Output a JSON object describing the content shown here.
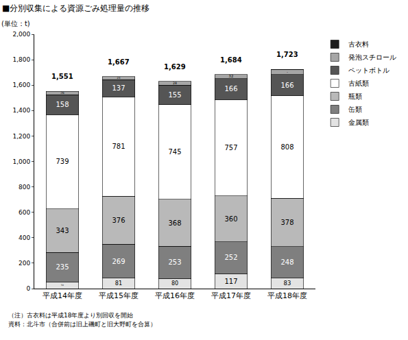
{
  "chart_data": {
    "type": "bar",
    "title": "■分別収集による資源ごみ処理量の推移",
    "y_label": "(単位：t)",
    "stacked": true,
    "data_labels": true,
    "grid": false,
    "legend": "right",
    "categories": [
      "平成14年度",
      "平成15年度",
      "平成16年度",
      "平成17年度",
      "平成18年度"
    ],
    "series": [
      {
        "name": "金属類",
        "color": "#e3e3e3",
        "values": [
          50,
          81,
          80,
          117,
          83
        ]
      },
      {
        "name": "缶類",
        "color": "#7f7f7f",
        "values": [
          235,
          269,
          253,
          252,
          248
        ]
      },
      {
        "name": "瓶類",
        "color": "#b9b9b9",
        "values": [
          343,
          376,
          368,
          360,
          378
        ]
      },
      {
        "name": "古紙類",
        "color": "#ffffff",
        "values": [
          739,
          781,
          745,
          757,
          808
        ]
      },
      {
        "name": "ペットボトル",
        "color": "#555555",
        "values": [
          158,
          137,
          155,
          166,
          166
        ]
      },
      {
        "name": "発泡スチロール",
        "color": "#a6a6a6",
        "values": [
          26,
          23,
          28,
          32,
          38
        ]
      },
      {
        "name": "古衣料",
        "color": "#1e1e1e",
        "values": [
          null,
          null,
          null,
          null,
          2
        ]
      }
    ],
    "totals": [
      1551,
      1667,
      1629,
      1684,
      1723
    ],
    "total_labels": [
      "1,551",
      "1,667",
      "1,629",
      "1,684",
      "1,723"
    ],
    "ylim": [
      0,
      2000
    ],
    "yticks": [
      0,
      200,
      400,
      600,
      800,
      {
        "value": 1000,
        "label": "1,000"
      },
      {
        "value": 1200,
        "label": "1,200"
      },
      {
        "value": 1400,
        "label": "1,400"
      },
      {
        "value": 1600,
        "label": "1,600"
      },
      {
        "value": 1800,
        "label": "1,800"
      },
      {
        "value": 2000,
        "label": "2,000"
      }
    ],
    "notes": [
      "（注）古衣料は平成18年度より別回収を開始",
      "資料：北斗市（合併前は旧上磯町と旧大野町を合算）"
    ]
  }
}
